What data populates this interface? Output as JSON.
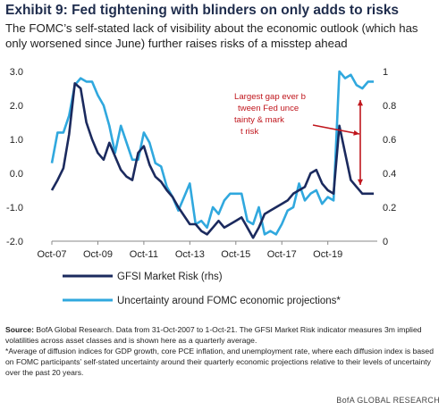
{
  "header": {
    "title": "Exhibit 9: Fed tightening with blinders on only adds to risks",
    "subtitle": "The FOMC’s self-stated lack of visibility about the economic outlook (which has only worsened since June) further raises risks of a misstep ahead"
  },
  "chart_data": {
    "type": "line",
    "x_tick_labels": [
      "Oct-07",
      "Oct-09",
      "Oct-11",
      "Oct-13",
      "Oct-15",
      "Oct-17",
      "Oct-19"
    ],
    "left_axis": {
      "ticks": [
        "3.0",
        "2.0",
        "1.0",
        "0.0",
        "-1.0",
        "-2.0"
      ],
      "ylim": [
        -2.0,
        3.0
      ]
    },
    "right_axis": {
      "ticks": [
        "1",
        "0.8",
        "0.6",
        "0.4",
        "0.2",
        "0"
      ],
      "ylim": [
        0,
        1
      ]
    },
    "grid": false,
    "series": [
      {
        "name": "GFSI Market Risk (rhs)",
        "axis": "right",
        "color": "#1b2a5e",
        "x": [
          2007.75,
          2008.0,
          2008.25,
          2008.5,
          2008.75,
          2009.0,
          2009.25,
          2009.5,
          2009.75,
          2010.0,
          2010.25,
          2010.5,
          2010.75,
          2011.0,
          2011.25,
          2011.5,
          2011.75,
          2012.0,
          2012.25,
          2012.5,
          2012.75,
          2013.0,
          2013.25,
          2013.5,
          2013.75,
          2014.0,
          2014.25,
          2014.5,
          2014.75,
          2015.0,
          2015.25,
          2015.5,
          2015.75,
          2016.0,
          2016.25,
          2016.5,
          2016.75,
          2017.0,
          2017.25,
          2017.5,
          2017.75,
          2018.0,
          2018.25,
          2018.5,
          2018.75,
          2019.0,
          2019.25,
          2019.5,
          2019.75,
          2020.0,
          2020.25,
          2020.5,
          2020.75,
          2021.0,
          2021.25,
          2021.5,
          2021.75
        ],
        "values": [
          0.3,
          0.36,
          0.43,
          0.63,
          0.93,
          0.9,
          0.7,
          0.6,
          0.52,
          0.48,
          0.58,
          0.5,
          0.42,
          0.38,
          0.36,
          0.52,
          0.56,
          0.45,
          0.38,
          0.35,
          0.3,
          0.26,
          0.2,
          0.15,
          0.1,
          0.1,
          0.06,
          0.04,
          0.08,
          0.12,
          0.08,
          0.1,
          0.12,
          0.14,
          0.08,
          0.02,
          0.08,
          0.16,
          0.18,
          0.2,
          0.22,
          0.24,
          0.28,
          0.3,
          0.32,
          0.4,
          0.42,
          0.34,
          0.3,
          0.28,
          0.68,
          0.52,
          0.36,
          0.32,
          0.28,
          0.28,
          0.28
        ]
      },
      {
        "name": "Uncertainty around FOMC economic projections*",
        "axis": "left",
        "color": "#30a8de",
        "x": [
          2007.75,
          2008.0,
          2008.25,
          2008.5,
          2008.75,
          2009.0,
          2009.25,
          2009.5,
          2009.75,
          2010.0,
          2010.25,
          2010.5,
          2010.75,
          2011.0,
          2011.25,
          2011.5,
          2011.75,
          2012.0,
          2012.25,
          2012.5,
          2012.75,
          2013.0,
          2013.25,
          2013.5,
          2013.75,
          2014.0,
          2014.25,
          2014.5,
          2014.75,
          2015.0,
          2015.25,
          2015.5,
          2015.75,
          2016.0,
          2016.25,
          2016.5,
          2016.75,
          2017.0,
          2017.25,
          2017.5,
          2017.75,
          2018.0,
          2018.25,
          2018.5,
          2018.75,
          2019.0,
          2019.25,
          2019.5,
          2019.75,
          2020.0,
          2020.25,
          2020.5,
          2020.75,
          2021.0,
          2021.25,
          2021.5,
          2021.75
        ],
        "values": [
          0.3,
          1.2,
          1.2,
          1.7,
          2.6,
          2.8,
          2.7,
          2.7,
          2.3,
          2.0,
          1.4,
          0.6,
          1.4,
          0.9,
          0.4,
          0.4,
          1.2,
          0.9,
          0.3,
          0.2,
          -0.4,
          -0.7,
          -1.1,
          -0.7,
          -0.3,
          -1.5,
          -1.4,
          -1.6,
          -1.0,
          -1.2,
          -0.8,
          -0.6,
          -0.6,
          -0.6,
          -1.4,
          -1.5,
          -1.0,
          -1.8,
          -1.7,
          -1.8,
          -1.5,
          -1.1,
          -1.0,
          -0.3,
          -0.8,
          -0.6,
          -0.5,
          -0.9,
          -0.7,
          -0.8,
          3.0,
          2.8,
          2.9,
          2.6,
          2.5,
          2.7,
          2.7
        ]
      }
    ],
    "annotation": "Largest gap ever between Fed uncertainty & market risk",
    "annotation_color": "#c0161d"
  },
  "source_note": {
    "source_label": "Source:",
    "source_text": " BofA Global Research. Data from 31-Oct-2007 to 1-Oct-21. The GFSI Market Risk indicator measures 3m implied volatilities across asset classes and is shown here as a quarterly average.",
    "footnote": "*Average of diffusion indices for GDP growth, core PCE inflation, and unemployment rate, where each diffusion index is based on FOMC participants’ self-stated uncertainty around their quarterly economic projections relative to their levels of uncertainty over the past 20 years."
  },
  "footer": "BofA GLOBAL RESEARCH"
}
